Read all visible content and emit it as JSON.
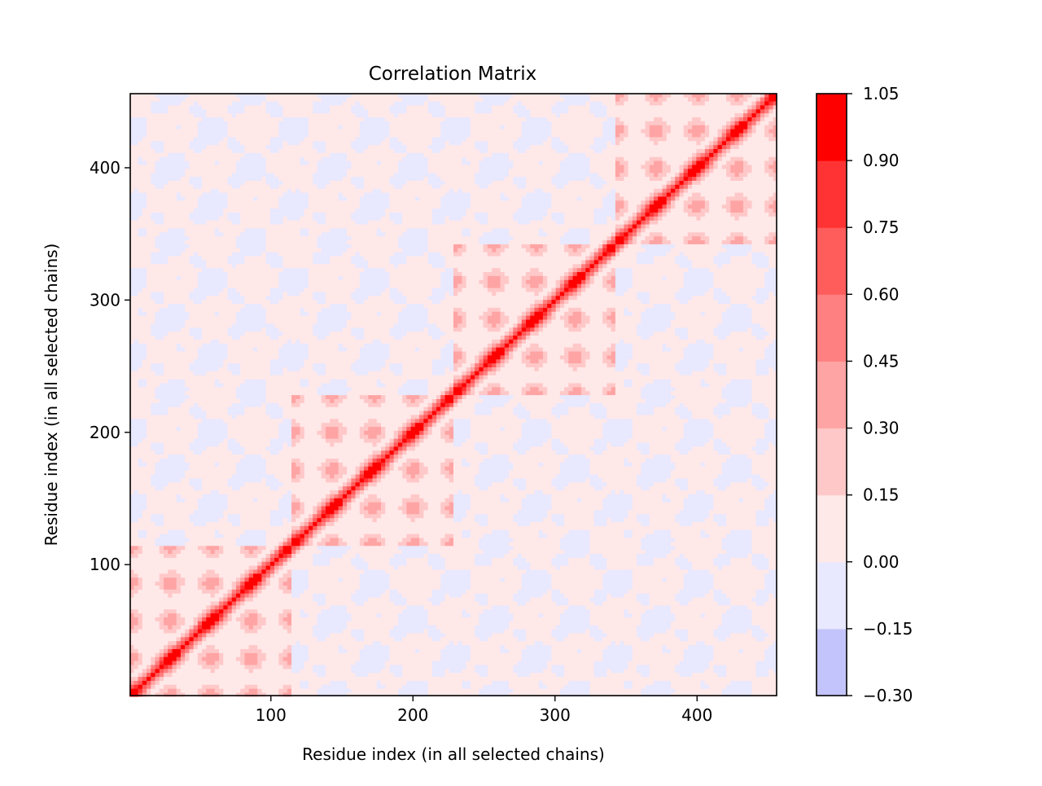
{
  "chart_data": {
    "type": "heatmap",
    "title": "Correlation Matrix",
    "xlabel": "Residue index (in all selected chains)",
    "ylabel": "Residue index (in all selected chains)",
    "xlim": [
      1,
      456
    ],
    "ylim": [
      1,
      456
    ],
    "xticks": [
      100,
      200,
      300,
      400
    ],
    "yticks": [
      100,
      200,
      300,
      400
    ],
    "xtick_labels": [
      "100",
      "200",
      "300",
      "400"
    ],
    "ytick_labels": [
      "100",
      "200",
      "300",
      "400"
    ],
    "domain_boundaries": [
      1,
      115,
      229,
      343,
      456
    ],
    "n_residues": 456,
    "diagonal_value": 1.0,
    "colorbar": {
      "levels": [
        -0.3,
        -0.15,
        0.0,
        0.15,
        0.3,
        0.45,
        0.6,
        0.75,
        0.9,
        1.05
      ],
      "tick_labels": [
        "−0.30",
        "−0.15",
        "0.00",
        "0.15",
        "0.30",
        "0.45",
        "0.60",
        "0.75",
        "0.90",
        "1.05"
      ],
      "colors": [
        "#c4c4fc",
        "#e8e8fe",
        "#ffe8e8",
        "#ffc8c8",
        "#ffa4a4",
        "#ff8080",
        "#ff5c5c",
        "#ff3333",
        "#ff0000"
      ]
    },
    "grid": false,
    "legend": "colorbar-right"
  }
}
